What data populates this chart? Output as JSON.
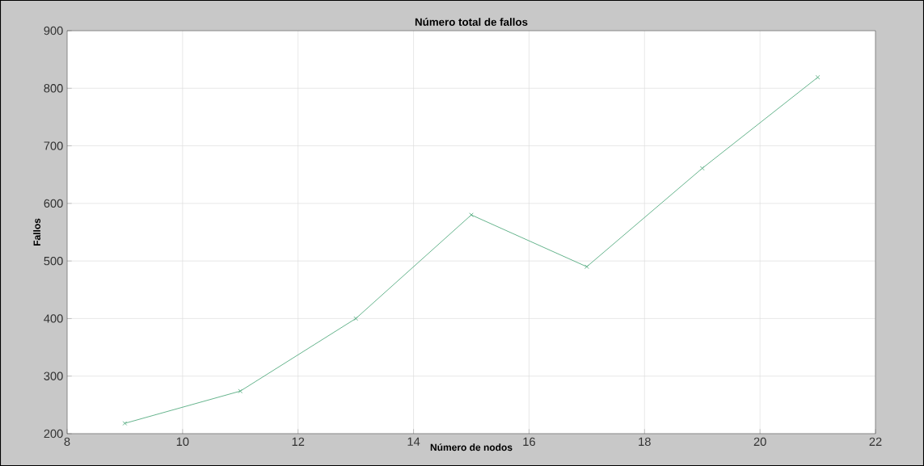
{
  "chart_data": {
    "type": "line",
    "title": "Número total de fallos",
    "xlabel": "Número de nodos",
    "ylabel": "Fallos",
    "x": [
      9,
      11,
      13,
      15,
      17,
      19,
      21
    ],
    "series": [
      {
        "color": "#5aae84",
        "values": [
          218,
          274,
          400,
          580,
          490,
          661,
          819
        ]
      }
    ],
    "xlim": [
      8,
      22
    ],
    "xticks": [
      8,
      10,
      12,
      14,
      16,
      18,
      20,
      22
    ],
    "ylim": [
      200,
      900
    ],
    "yticks": [
      200,
      300,
      400,
      500,
      600,
      700,
      800,
      900
    ],
    "grid": true,
    "marker": "cross",
    "line_style": "solid"
  }
}
